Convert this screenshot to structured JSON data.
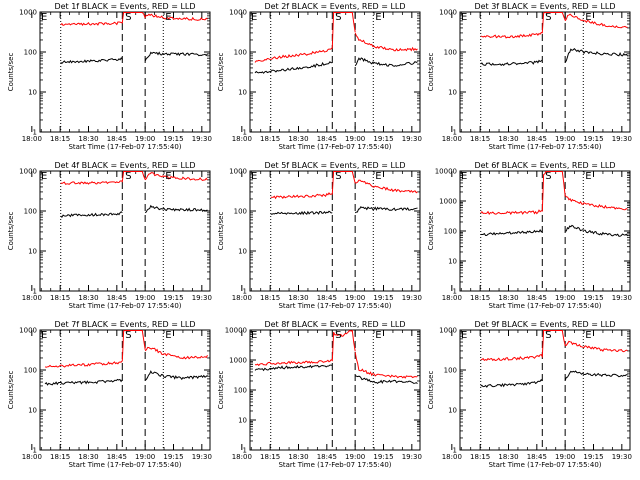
{
  "figure": {
    "xticks": [
      "18:00",
      "18:15",
      "18:30",
      "18:45",
      "19:00",
      "19:15",
      "19:30"
    ],
    "ylabel": "Counts/sec",
    "xlabel": "Start Time (17-Feb-07 17:55:40)",
    "marker_labels": {
      "start": "S",
      "end": "E",
      "background": "E"
    },
    "colors": {
      "events": "#000000",
      "lld": "#ff0000"
    }
  },
  "chart_data": [
    {
      "type": "line",
      "title": "Det 1f BLACK = Events, RED = LLD",
      "ylog": true,
      "ylim": [
        1,
        1000
      ],
      "yticks": [
        "1",
        "10",
        "100",
        "1000"
      ],
      "xlim_minutes": [
        4.33,
        94.33
      ],
      "markers": {
        "dotted": [
          15.3,
          69.6
        ],
        "dashed": [
          47.9,
          60.0
        ]
      },
      "series": [
        {
          "name": "Events",
          "color": "#000000",
          "segments": [
            {
              "x": [
                15.3,
                30,
                45,
                47.9
              ],
              "y": [
                55,
                58,
                65,
                68
              ]
            },
            {
              "x": [
                60.0,
                63,
                70,
                80,
                93
              ],
              "y": [
                60,
                95,
                90,
                88,
                85
              ]
            }
          ]
        },
        {
          "name": "LLD",
          "color": "#ff0000",
          "segments": [
            {
              "x": [
                15.3,
                30,
                45,
                47.9,
                48.6,
                51,
                56,
                58.5,
                60.0
              ],
              "y": [
                480,
                500,
                520,
                530,
                1000,
                1000,
                1000,
                1000,
                750
              ]
            },
            {
              "x": [
                60.0,
                62,
                70,
                80,
                93
              ],
              "y": [
                750,
                850,
                720,
                680,
                650
              ]
            }
          ]
        }
      ]
    },
    {
      "type": "line",
      "title": "Det 2f BLACK = Events, RED = LLD",
      "ylog": true,
      "ylim": [
        1,
        1000
      ],
      "yticks": [
        "1",
        "10",
        "100",
        "1000"
      ],
      "xlim_minutes": [
        4.33,
        94.33
      ],
      "markers": {
        "dotted": [
          15.3,
          69.6
        ],
        "dashed": [
          47.9,
          60.0
        ]
      },
      "series": [
        {
          "name": "Events",
          "color": "#000000",
          "segments": [
            {
              "x": [
                7.0,
                20,
                35,
                47.9
              ],
              "y": [
                30,
                35,
                42,
                55
              ]
            },
            {
              "x": [
                60.0,
                62,
                70,
                80,
                93
              ],
              "y": [
                45,
                70,
                52,
                45,
                55
              ]
            }
          ]
        },
        {
          "name": "LLD",
          "color": "#ff0000",
          "segments": [
            {
              "x": [
                7.0,
                20,
                35,
                45,
                47.9,
                48.6,
                51,
                56,
                58.5,
                60.0
              ],
              "y": [
                55,
                75,
                90,
                110,
                130,
                1000,
                1000,
                1000,
                1000,
                300
              ]
            },
            {
              "x": [
                60.0,
                62,
                70,
                80,
                93
              ],
              "y": [
                300,
                210,
                140,
                110,
                120
              ]
            }
          ]
        }
      ]
    },
    {
      "type": "line",
      "title": "Det 3f BLACK = Events, RED = LLD",
      "ylog": true,
      "ylim": [
        1,
        1000
      ],
      "yticks": [
        "1",
        "10",
        "100",
        "1000"
      ],
      "xlim_minutes": [
        4.33,
        94.33
      ],
      "markers": {
        "dotted": [
          15.3,
          69.6
        ],
        "dashed": [
          47.9,
          60.0
        ]
      },
      "series": [
        {
          "name": "Events",
          "color": "#000000",
          "segments": [
            {
              "x": [
                15.3,
                30,
                45,
                47.9
              ],
              "y": [
                50,
                50,
                55,
                60
              ]
            },
            {
              "x": [
                60.0,
                63,
                70,
                80,
                93
              ],
              "y": [
                55,
                120,
                100,
                90,
                85
              ]
            }
          ]
        },
        {
          "name": "LLD",
          "color": "#ff0000",
          "segments": [
            {
              "x": [
                15.3,
                30,
                45,
                47.9,
                48.6,
                51,
                56,
                58.5,
                60.0
              ],
              "y": [
                250,
                240,
                270,
                300,
                1000,
                1000,
                1000,
                1000,
                600
              ]
            },
            {
              "x": [
                60.0,
                62,
                70,
                80,
                93
              ],
              "y": [
                600,
                900,
                600,
                480,
                400
              ]
            }
          ]
        }
      ]
    },
    {
      "type": "line",
      "title": "Det 4f BLACK = Events, RED = LLD",
      "ylog": true,
      "ylim": [
        1,
        1000
      ],
      "yticks": [
        "1",
        "10",
        "100",
        "1000"
      ],
      "xlim_minutes": [
        4.33,
        94.33
      ],
      "markers": {
        "dotted": [
          15.3,
          69.6
        ],
        "dashed": [
          47.9,
          60.0
        ]
      },
      "series": [
        {
          "name": "Events",
          "color": "#000000",
          "segments": [
            {
              "x": [
                15.3,
                30,
                45,
                47.9
              ],
              "y": [
                75,
                80,
                85,
                90
              ]
            },
            {
              "x": [
                60.0,
                63,
                70,
                80,
                93
              ],
              "y": [
                90,
                130,
                110,
                108,
                105
              ]
            }
          ]
        },
        {
          "name": "LLD",
          "color": "#ff0000",
          "segments": [
            {
              "x": [
                15.3,
                30,
                45,
                47.9,
                48.6,
                51,
                56,
                58.5,
                60.0
              ],
              "y": [
                500,
                500,
                520,
                540,
                1000,
                1000,
                1000,
                1000,
                600
              ]
            },
            {
              "x": [
                60.0,
                62,
                70,
                80,
                93
              ],
              "y": [
                600,
                900,
                700,
                650,
                620
              ]
            }
          ]
        }
      ]
    },
    {
      "type": "line",
      "title": "Det 5f BLACK = Events, RED = LLD",
      "ylog": true,
      "ylim": [
        1,
        1000
      ],
      "yticks": [
        "1",
        "10",
        "100",
        "1000"
      ],
      "xlim_minutes": [
        4.33,
        94.33
      ],
      "markers": {
        "dotted": [
          15.3,
          69.6
        ],
        "dashed": [
          47.9,
          60.0
        ]
      },
      "series": [
        {
          "name": "Events",
          "color": "#000000",
          "segments": [
            {
              "x": [
                15.3,
                30,
                45,
                47.9
              ],
              "y": [
                85,
                88,
                92,
                95
              ]
            },
            {
              "x": [
                60.0,
                63,
                70,
                80,
                93
              ],
              "y": [
                90,
                120,
                115,
                110,
                112
              ]
            }
          ]
        },
        {
          "name": "LLD",
          "color": "#ff0000",
          "segments": [
            {
              "x": [
                15.3,
                30,
                45,
                47.9,
                48.6,
                51,
                56,
                58.5,
                60.0
              ],
              "y": [
                220,
                230,
                250,
                280,
                1000,
                1000,
                1000,
                1000,
                500
              ]
            },
            {
              "x": [
                60.0,
                62,
                70,
                80,
                93
              ],
              "y": [
                500,
                600,
                420,
                330,
                300
              ]
            }
          ]
        }
      ]
    },
    {
      "type": "line",
      "title": "Det 6f BLACK = Events, RED = LLD",
      "ylog": true,
      "ylim": [
        1,
        10000
      ],
      "yticks": [
        "1",
        "10",
        "100",
        "1000",
        "10000"
      ],
      "xlim_minutes": [
        4.33,
        94.33
      ],
      "markers": {
        "dotted": [
          15.3,
          69.6
        ],
        "dashed": [
          47.9,
          60.0
        ]
      },
      "series": [
        {
          "name": "Events",
          "color": "#000000",
          "segments": [
            {
              "x": [
                15.3,
                30,
                45,
                47.9
              ],
              "y": [
                75,
                85,
                95,
                100
              ]
            },
            {
              "x": [
                60.0,
                63,
                70,
                80,
                93
              ],
              "y": [
                100,
                150,
                100,
                80,
                70
              ]
            }
          ]
        },
        {
          "name": "LLD",
          "color": "#ff0000",
          "segments": [
            {
              "x": [
                15.3,
                30,
                45,
                47.9,
                48.6,
                51,
                56,
                58.5,
                60.0
              ],
              "y": [
                400,
                400,
                420,
                500,
                8000,
                10000,
                10000,
                10000,
                1500
              ]
            },
            {
              "x": [
                60.0,
                62,
                70,
                80,
                93
              ],
              "y": [
                1500,
                1100,
                800,
                650,
                520
              ]
            }
          ]
        }
      ]
    },
    {
      "type": "line",
      "title": "Det 7f BLACK = Events, RED = LLD",
      "ylog": true,
      "ylim": [
        1,
        1000
      ],
      "yticks": [
        "1",
        "10",
        "100",
        "1000"
      ],
      "xlim_minutes": [
        4.33,
        94.33
      ],
      "markers": {
        "dotted": [
          15.3,
          69.6
        ],
        "dashed": [
          47.9,
          60.0
        ]
      },
      "series": [
        {
          "name": "Events",
          "color": "#000000",
          "segments": [
            {
              "x": [
                7.0,
                20,
                35,
                47.9
              ],
              "y": [
                45,
                48,
                50,
                55
              ]
            },
            {
              "x": [
                60.0,
                63,
                70,
                80,
                93
              ],
              "y": [
                55,
                90,
                70,
                62,
                70
              ]
            }
          ]
        },
        {
          "name": "LLD",
          "color": "#ff0000",
          "segments": [
            {
              "x": [
                7.0,
                20,
                35,
                45,
                47.9,
                48.6,
                51,
                56,
                58.5,
                60.0
              ],
              "y": [
                120,
                130,
                140,
                150,
                160,
                1000,
                1000,
                1000,
                1000,
                300
              ]
            },
            {
              "x": [
                60.0,
                62,
                70,
                80,
                93
              ],
              "y": [
                300,
                380,
                250,
                200,
                220
              ]
            }
          ]
        }
      ]
    },
    {
      "type": "line",
      "title": "Det 8f BLACK = Events, RED = LLD",
      "ylog": true,
      "ylim": [
        1,
        10000
      ],
      "yticks": [
        "1",
        "10",
        "100",
        "1000",
        "10000"
      ],
      "xlim_minutes": [
        4.33,
        94.33
      ],
      "markers": {
        "dotted": [
          15.3,
          69.6
        ],
        "dashed": [
          47.9,
          60.0
        ]
      },
      "series": [
        {
          "name": "Events",
          "color": "#000000",
          "segments": [
            {
              "x": [
                7.0,
                20,
                35,
                47.9
              ],
              "y": [
                450,
                550,
                600,
                650
              ]
            },
            {
              "x": [
                60.0,
                63,
                70,
                80,
                93
              ],
              "y": [
                300,
                250,
                180,
                200,
                170
              ]
            }
          ]
        },
        {
          "name": "LLD",
          "color": "#ff0000",
          "segments": [
            {
              "x": [
                7.0,
                20,
                35,
                45,
                47.9,
                48.6,
                50,
                53,
                56,
                58.5,
                60.0
              ],
              "y": [
                700,
                800,
                850,
                900,
                1000,
                8000,
                7000,
                6500,
                8500,
                10000,
                1800
              ]
            },
            {
              "x": [
                60.0,
                62,
                70,
                80,
                93
              ],
              "y": [
                1800,
                500,
                320,
                280,
                260
              ]
            }
          ]
        }
      ]
    },
    {
      "type": "line",
      "title": "Det 9f BLACK = Events, RED = LLD",
      "ylog": true,
      "ylim": [
        1,
        1000
      ],
      "yticks": [
        "1",
        "10",
        "100",
        "1000"
      ],
      "xlim_minutes": [
        4.33,
        94.33
      ],
      "markers": {
        "dotted": [
          15.3,
          69.6
        ],
        "dashed": [
          47.9,
          60.0
        ]
      },
      "series": [
        {
          "name": "Events",
          "color": "#000000",
          "segments": [
            {
              "x": [
                15.3,
                30,
                45,
                47.9
              ],
              "y": [
                40,
                42,
                48,
                55
              ]
            },
            {
              "x": [
                60.0,
                63,
                70,
                80,
                93
              ],
              "y": [
                55,
                95,
                80,
                75,
                72
              ]
            }
          ]
        },
        {
          "name": "LLD",
          "color": "#ff0000",
          "segments": [
            {
              "x": [
                15.3,
                30,
                45,
                47.9,
                48.6,
                51,
                56,
                58.5,
                60.0
              ],
              "y": [
                180,
                190,
                210,
                230,
                1000,
                1000,
                1000,
                1000,
                400
              ]
            },
            {
              "x": [
                60.0,
                62,
                70,
                80,
                93
              ],
              "y": [
                400,
                500,
                380,
                320,
                300
              ]
            }
          ]
        }
      ]
    }
  ]
}
